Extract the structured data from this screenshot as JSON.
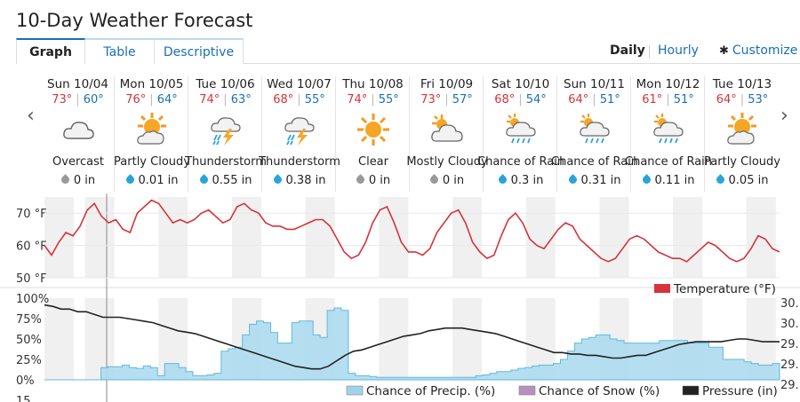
{
  "page_title": "10-Day Weather Forecast",
  "tabs": [
    {
      "label": "Graph",
      "active": true
    },
    {
      "label": "Table",
      "active": false
    },
    {
      "label": "Descriptive",
      "active": false
    }
  ],
  "view_options": {
    "daily": "Daily",
    "hourly": "Hourly",
    "customize": "Customize",
    "selected": "Daily"
  },
  "days": [
    {
      "date": "Sun 10/04",
      "hi": "73°",
      "lo": "60°",
      "icon": "cloud-icon",
      "condition": "Overcast",
      "precip": "0 in"
    },
    {
      "date": "Mon 10/05",
      "hi": "76°",
      "lo": "64°",
      "icon": "partly-cloudy-icon",
      "condition": "Partly Cloudy",
      "precip": "0.01 in"
    },
    {
      "date": "Tue 10/06",
      "hi": "74°",
      "lo": "63°",
      "icon": "thunderstorm-icon",
      "condition": "Thunderstorm",
      "precip": "0.55 in"
    },
    {
      "date": "Wed 10/07",
      "hi": "68°",
      "lo": "55°",
      "icon": "thunderstorm-icon",
      "condition": "Thunderstorm",
      "precip": "0.38 in"
    },
    {
      "date": "Thu 10/08",
      "hi": "74°",
      "lo": "55°",
      "icon": "sun-icon",
      "condition": "Clear",
      "precip": "0 in"
    },
    {
      "date": "Fri 10/09",
      "hi": "73°",
      "lo": "57°",
      "icon": "mostly-cloudy-icon",
      "condition": "Mostly Cloudy",
      "precip": "0 in"
    },
    {
      "date": "Sat 10/10",
      "hi": "68°",
      "lo": "54°",
      "icon": "chance-rain-icon",
      "condition": "Chance of Rain",
      "precip": "0.3 in"
    },
    {
      "date": "Sun 10/11",
      "hi": "64°",
      "lo": "51°",
      "icon": "chance-rain-icon",
      "condition": "Chance of Rain",
      "precip": "0.31 in"
    },
    {
      "date": "Mon 10/12",
      "hi": "61°",
      "lo": "51°",
      "icon": "chance-rain-icon",
      "condition": "Chance of Rain",
      "precip": "0.11 in"
    },
    {
      "date": "Tue 10/13",
      "hi": "64°",
      "lo": "53°",
      "icon": "partly-cloudy-icon",
      "condition": "Partly Cloudy",
      "precip": "0.05 in"
    }
  ],
  "chart_data": [
    {
      "type": "line",
      "ylabels": [
        "70 °F",
        "60 °F",
        "50 °F"
      ],
      "ylim": [
        50,
        75
      ],
      "legend": "Temperature (°F)",
      "color": "#d6333a",
      "series": [
        {
          "name": "Temperature (°F)",
          "values": [
            60,
            57,
            61,
            64,
            63,
            66,
            71,
            73,
            69,
            67,
            68,
            65,
            64,
            70,
            72,
            74,
            73,
            70,
            67,
            68,
            67,
            68,
            70,
            71,
            69,
            67,
            68,
            72,
            73,
            71,
            70,
            67,
            66,
            66,
            65,
            65,
            66,
            67,
            68,
            68,
            66,
            62,
            58,
            56,
            57,
            61,
            67,
            71,
            72,
            67,
            61,
            58,
            58,
            57,
            59,
            64,
            67,
            70,
            71,
            67,
            61,
            58,
            56,
            57,
            63,
            68,
            70,
            67,
            62,
            60,
            59,
            62,
            65,
            67,
            66,
            62,
            60,
            58,
            56,
            55,
            56,
            59,
            62,
            63,
            62,
            60,
            58,
            57,
            56,
            56,
            55,
            57,
            59,
            61,
            60,
            58,
            56,
            55,
            56,
            59,
            63,
            62,
            59,
            58
          ]
        }
      ]
    },
    {
      "type": "area",
      "ylabels": [
        "100%",
        "75%",
        "50%",
        "25%",
        "0%"
      ],
      "ylim": [
        0,
        100
      ],
      "right_ticks": [
        "30.",
        "30.",
        "29.",
        "29.",
        "29."
      ],
      "next_axis_label": "15",
      "legend": [
        {
          "label": "Chance of Precip. (%)",
          "color": "#9fd3ea"
        },
        {
          "label": "Chance of Snow (%)",
          "color": "#b98fc0"
        },
        {
          "label": "Pressure (in)",
          "color": "#222222"
        }
      ],
      "series": [
        {
          "name": "Chance of Precip. (%)",
          "values": [
            0,
            0,
            0,
            0,
            0,
            0,
            0,
            0,
            15,
            16,
            16,
            18,
            15,
            14,
            17,
            15,
            5,
            20,
            20,
            15,
            10,
            5,
            5,
            6,
            8,
            35,
            38,
            40,
            55,
            68,
            72,
            70,
            58,
            45,
            45,
            70,
            72,
            72,
            55,
            52,
            85,
            88,
            85,
            8,
            5,
            5,
            4,
            3,
            3,
            3,
            3,
            3,
            3,
            3,
            3,
            3,
            3,
            3,
            3,
            3,
            3,
            5,
            6,
            8,
            10,
            10,
            12,
            14,
            15,
            17,
            18,
            18,
            20,
            25,
            35,
            45,
            50,
            52,
            55,
            55,
            50,
            48,
            45,
            45,
            45,
            45,
            45,
            48,
            48,
            48,
            48,
            45,
            45,
            45,
            40,
            40,
            25,
            25,
            25,
            22,
            20,
            18,
            18,
            20
          ]
        },
        {
          "name": "Pressure (in)",
          "values": [
            30.25,
            30.24,
            30.22,
            30.22,
            30.2,
            30.2,
            30.18,
            30.16,
            30.16,
            30.16,
            30.15,
            30.14,
            30.13,
            30.12,
            30.1,
            30.08,
            30.06,
            30.05,
            30.04,
            30.02,
            30.0,
            29.98,
            29.96,
            29.94,
            29.92,
            29.9,
            29.88,
            29.86,
            29.84,
            29.82,
            29.8,
            29.79,
            29.78,
            29.78,
            29.8,
            29.84,
            29.88,
            29.91,
            29.92,
            29.94,
            29.96,
            29.98,
            30.0,
            30.02,
            30.03,
            30.04,
            30.06,
            30.07,
            30.08,
            30.08,
            30.08,
            30.07,
            30.06,
            30.05,
            30.04,
            30.02,
            30.0,
            29.98,
            29.96,
            29.94,
            29.92,
            29.9,
            29.9,
            29.89,
            29.89,
            29.88,
            29.88,
            29.87,
            29.86,
            29.86,
            29.87,
            29.88,
            29.88,
            29.9,
            29.92,
            29.94,
            29.96,
            29.97,
            29.98,
            29.98,
            29.98,
            29.98,
            29.99,
            30.0,
            30.0,
            29.99,
            29.98,
            29.98,
            29.98
          ]
        }
      ]
    }
  ]
}
